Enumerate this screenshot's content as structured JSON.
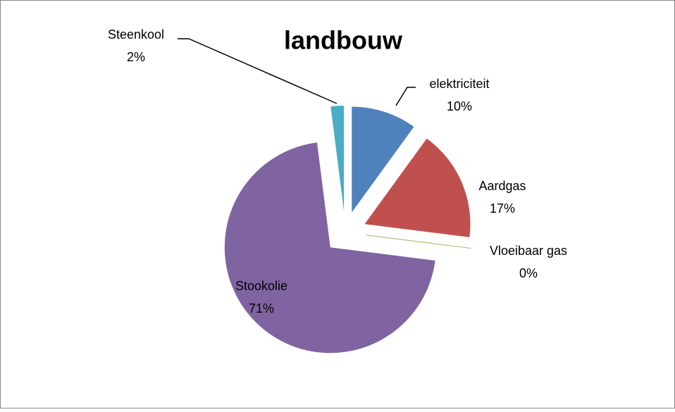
{
  "chart_data": {
    "type": "pie",
    "title": "landbouw",
    "categories": [
      "elektriciteit",
      "Aardgas",
      "Vloeibaar gas",
      "Stookolie",
      "Steenkool"
    ],
    "values": [
      10,
      17,
      0,
      71,
      2
    ],
    "value_labels": [
      "10%",
      "17%",
      "0%",
      "71%",
      "2%"
    ],
    "colors": [
      "#4f81bd",
      "#c0504d",
      "#9bbb59",
      "#8064a2",
      "#4bacc6"
    ],
    "exploded": true
  }
}
